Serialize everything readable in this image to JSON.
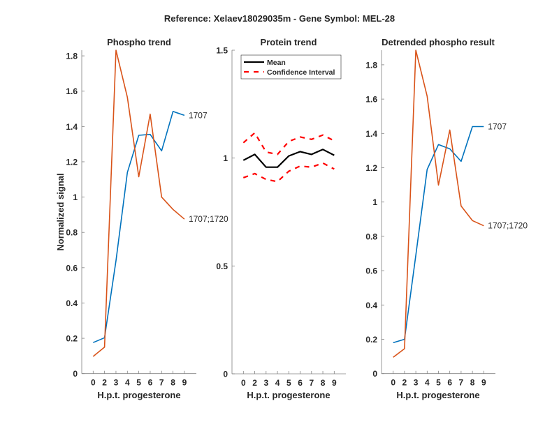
{
  "figure_title": "Reference:  Xelaev18029035m - Gene Symbol:  MEL-28",
  "colors": {
    "series_1707": "#0072BD",
    "series_1707_1720": "#D95319",
    "mean": "#000000",
    "ci": "#FF0000",
    "axis": "#808080",
    "text": "#262626"
  },
  "chart_data": [
    {
      "type": "line",
      "title": "Phospho trend",
      "xlabel": "H.p.t. progesterone",
      "ylabel": "Normalized signal",
      "categories": [
        "0",
        "2",
        "3",
        "4",
        "5",
        "6",
        "7",
        "8",
        "9"
      ],
      "ylim": [
        0,
        1.832
      ],
      "yticks": [
        "0",
        "0.2",
        "0.4",
        "0.6",
        "0.8",
        "1",
        "1.2",
        "1.4",
        "1.6",
        "1.8"
      ],
      "ytick_values": [
        0,
        0.2,
        0.4,
        0.6,
        0.8,
        1,
        1.2,
        1.4,
        1.6,
        1.8
      ],
      "grid": false,
      "series": [
        {
          "name": "1707",
          "color_key": "series_1707",
          "values": [
            0.176,
            0.203,
            0.64,
            1.14,
            1.35,
            1.355,
            1.262,
            1.485,
            1.463
          ]
        },
        {
          "name": "1707;1720",
          "color_key": "series_1707_1720",
          "values": [
            0.097,
            0.15,
            1.832,
            1.565,
            1.115,
            1.47,
            1.0,
            0.93,
            0.875
          ]
        }
      ]
    },
    {
      "type": "line",
      "title": "Protein trend",
      "xlabel": "H.p.t. progesterone",
      "ylabel": "",
      "categories": [
        "0",
        "2",
        "3",
        "4",
        "5",
        "6",
        "7",
        "8",
        "9"
      ],
      "ylim": [
        0,
        1.5
      ],
      "yticks": [
        "0",
        "0.5",
        "1",
        "1.5"
      ],
      "ytick_values": [
        0,
        0.5,
        1,
        1.5
      ],
      "grid": false,
      "legend": {
        "placement": "top-left",
        "entries": [
          "Mean",
          "Confidence Interval"
        ]
      },
      "series": [
        {
          "name": "Mean",
          "color_key": "mean",
          "style": "solid",
          "values": [
            0.99,
            1.017,
            0.958,
            0.958,
            1.01,
            1.03,
            1.017,
            1.04,
            1.013
          ]
        },
        {
          "name": "Confidence Interval (upper)",
          "color_key": "ci",
          "style": "dashed",
          "values": [
            1.071,
            1.117,
            1.028,
            1.017,
            1.077,
            1.098,
            1.087,
            1.107,
            1.08
          ]
        },
        {
          "name": "Confidence Interval (lower)",
          "color_key": "ci",
          "style": "dashed",
          "values": [
            0.909,
            0.928,
            0.901,
            0.891,
            0.939,
            0.963,
            0.958,
            0.977,
            0.949
          ]
        }
      ]
    },
    {
      "type": "line",
      "title": "Detrended phospho result",
      "xlabel": "H.p.t. progesterone",
      "ylabel": "",
      "categories": [
        "0",
        "2",
        "3",
        "4",
        "5",
        "6",
        "7",
        "8",
        "9"
      ],
      "ylim": [
        0,
        1.885
      ],
      "yticks": [
        "0",
        "0.2",
        "0.4",
        "0.6",
        "0.8",
        "1",
        "1.2",
        "1.4",
        "1.6",
        "1.8"
      ],
      "ytick_values": [
        0,
        0.2,
        0.4,
        0.6,
        0.8,
        1,
        1.2,
        1.4,
        1.6,
        1.8
      ],
      "grid": false,
      "series": [
        {
          "name": "1707",
          "color_key": "series_1707",
          "values": [
            0.18,
            0.2,
            0.69,
            1.19,
            1.335,
            1.31,
            1.237,
            1.44,
            1.44
          ]
        },
        {
          "name": "1707;1720",
          "color_key": "series_1707_1720",
          "values": [
            0.095,
            0.145,
            1.885,
            1.617,
            1.099,
            1.42,
            0.977,
            0.892,
            0.862
          ]
        }
      ]
    }
  ]
}
